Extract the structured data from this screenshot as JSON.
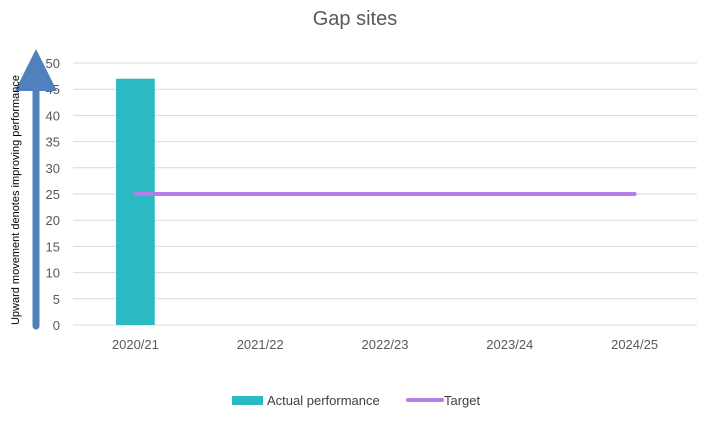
{
  "chart_data": {
    "type": "bar",
    "title": "Gap sites",
    "ylabel": "Upward movement denotes improving performance",
    "xlabel": "",
    "categories": [
      "2020/21",
      "2021/22",
      "2022/23",
      "2023/24",
      "2024/25"
    ],
    "ylim": [
      0,
      50
    ],
    "yticks": [
      0,
      5,
      10,
      15,
      20,
      25,
      30,
      35,
      40,
      45,
      50
    ],
    "grid": true,
    "legend_position": "bottom",
    "series": [
      {
        "name": "Actual performance",
        "type": "bar",
        "color": "#2BB9C3",
        "values": [
          47,
          null,
          null,
          null,
          null
        ]
      },
      {
        "name": "Target",
        "type": "line",
        "color": "#B57EE6",
        "values": [
          25,
          25,
          25,
          25,
          25
        ]
      }
    ],
    "axis_arrow_color": "#4F81BD"
  }
}
